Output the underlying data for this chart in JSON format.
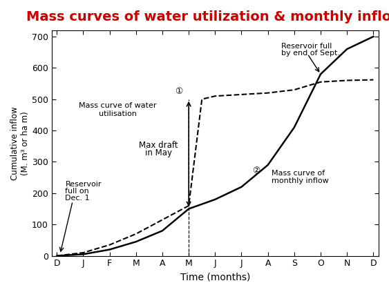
{
  "title": "Mass curves of water utilization & monthly inflow",
  "title_color": "#cc0000",
  "title_fontsize": 14,
  "xlabel": "Time (months)",
  "ylabel": "Cumulative inflow\n(M. m³ or ha m)",
  "x_ticks": [
    0,
    1,
    2,
    3,
    4,
    5,
    6,
    7,
    8,
    9,
    10,
    11,
    12
  ],
  "x_tick_labels": [
    "D",
    "J",
    "F",
    "M",
    "A",
    "M",
    "J",
    "J",
    "A",
    "S",
    "O",
    "N",
    "D"
  ],
  "ylim": [
    0,
    720
  ],
  "yticks": [
    0,
    100,
    200,
    300,
    400,
    500,
    600,
    700
  ],
  "bg_color": "#ffffff",
  "curve1_x": [
    0,
    1,
    2,
    3,
    4,
    5,
    5.5,
    6,
    7,
    8,
    9,
    10,
    11,
    12
  ],
  "curve1_y": [
    0,
    10,
    35,
    70,
    115,
    160,
    500,
    510,
    515,
    520,
    530,
    555,
    560,
    562
  ],
  "curve2_x": [
    0,
    1,
    2,
    3,
    4,
    5,
    6,
    7,
    8,
    9,
    10,
    11,
    12
  ],
  "curve2_y": [
    0,
    5,
    20,
    45,
    80,
    150,
    180,
    220,
    290,
    410,
    580,
    660,
    700
  ]
}
